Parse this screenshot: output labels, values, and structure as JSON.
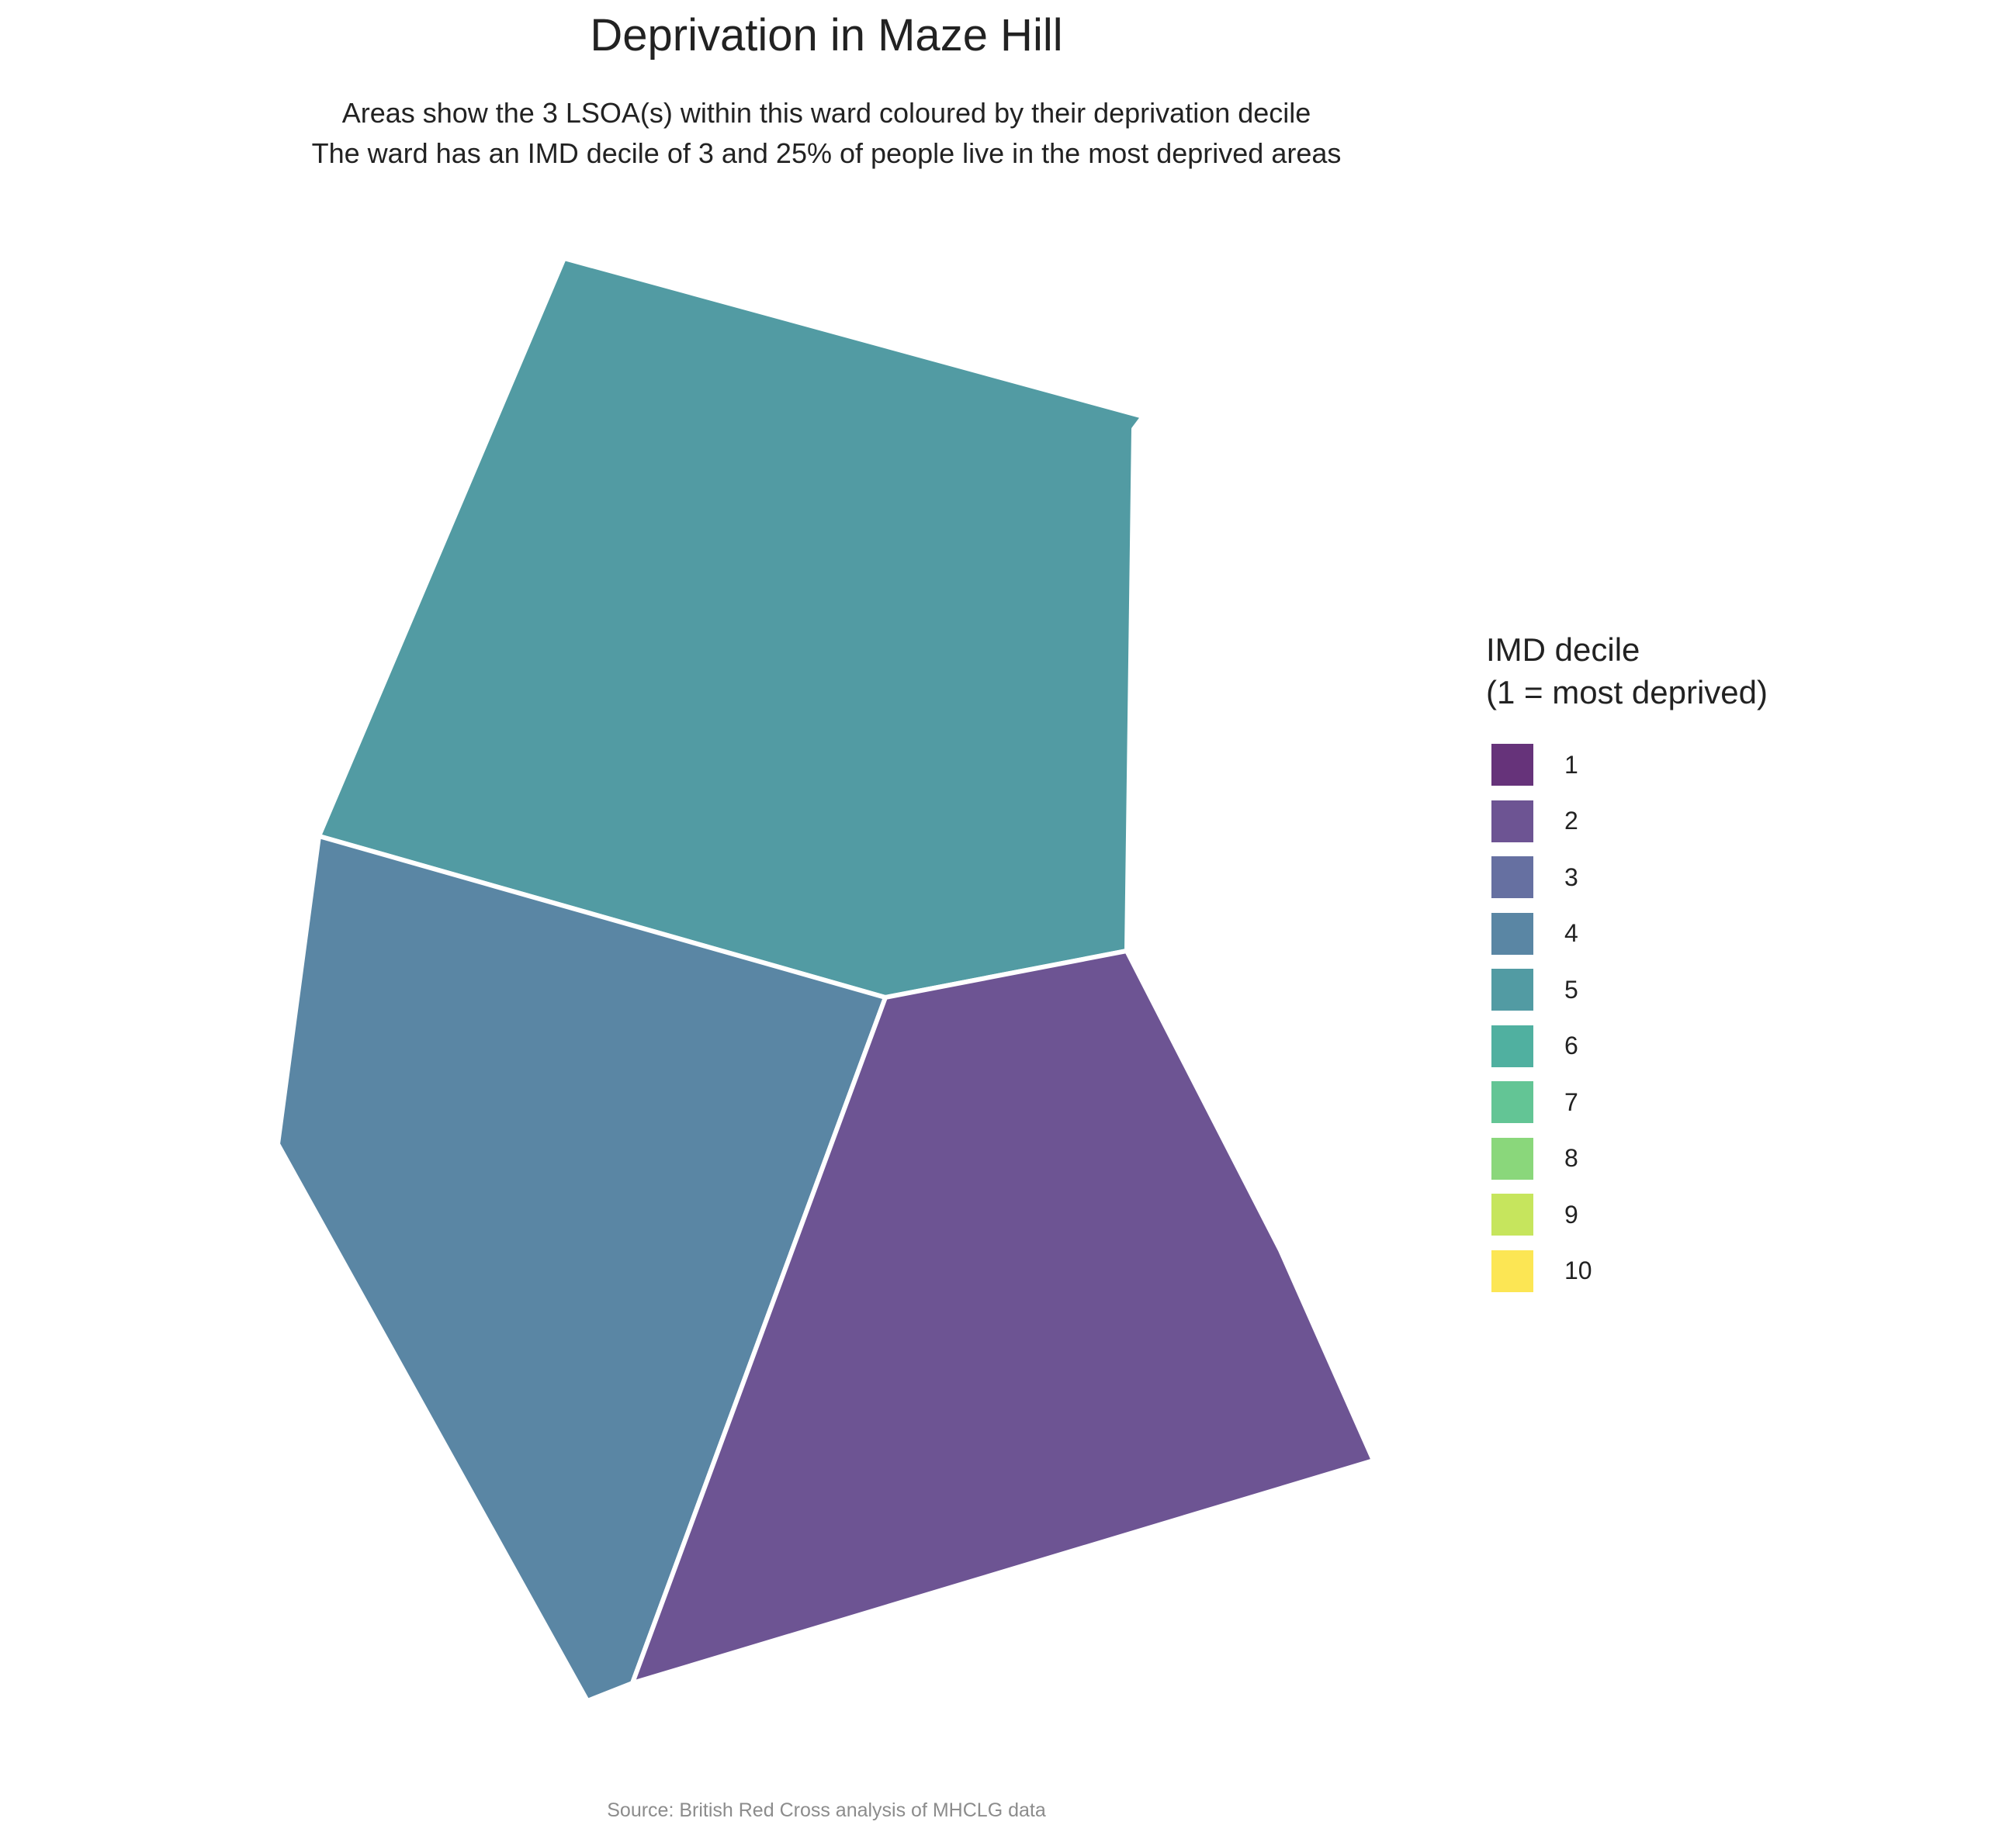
{
  "title": "Deprivation in Maze Hill",
  "subtitle": {
    "line1": "Areas show the 3 LSOA(s) within this ward coloured by their deprivation decile",
    "line2": "The ward has an IMD decile of 3 and 25% of people live in the most deprived areas"
  },
  "map": {
    "areas": [
      {
        "name": "lsoa-north",
        "decile": 5,
        "color": "#529BA3"
      },
      {
        "name": "lsoa-west",
        "decile": 4,
        "color": "#5A86A4"
      },
      {
        "name": "lsoa-southeast",
        "decile": 2,
        "color": "#6D5493"
      }
    ],
    "border_color": "#ffffff"
  },
  "legend": {
    "title_line1": "IMD decile",
    "title_line2": "(1 = most deprived)",
    "items": [
      {
        "label": "1",
        "color": "#66337A"
      },
      {
        "label": "2",
        "color": "#6D5493"
      },
      {
        "label": "3",
        "color": "#6670A1"
      },
      {
        "label": "4",
        "color": "#5A86A4"
      },
      {
        "label": "5",
        "color": "#529BA3"
      },
      {
        "label": "6",
        "color": "#50B0A0"
      },
      {
        "label": "7",
        "color": "#63C595"
      },
      {
        "label": "8",
        "color": "#8AD77B"
      },
      {
        "label": "9",
        "color": "#C6E55D"
      },
      {
        "label": "10",
        "color": "#FCE654"
      }
    ]
  },
  "caption": "Source: British Red Cross analysis of MHCLG data"
}
